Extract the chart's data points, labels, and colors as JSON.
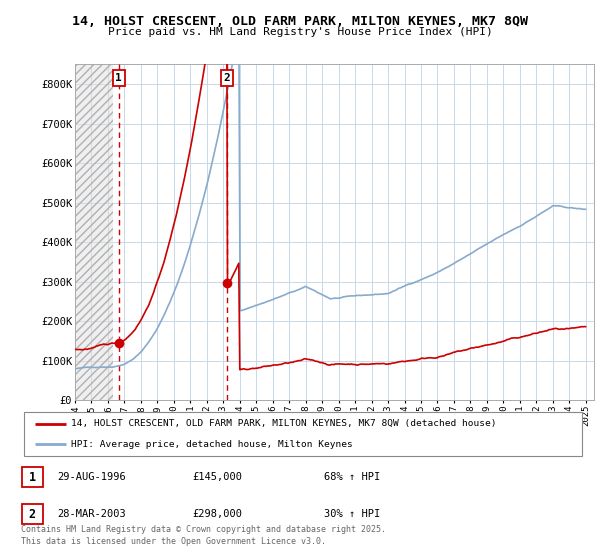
{
  "title": "14, HOLST CRESCENT, OLD FARM PARK, MILTON KEYNES, MK7 8QW",
  "subtitle": "Price paid vs. HM Land Registry's House Price Index (HPI)",
  "sale1_date": 1996.66,
  "sale1_price": 145000,
  "sale2_date": 2003.24,
  "sale2_price": 298000,
  "red_line_color": "#cc0000",
  "blue_line_color": "#88aacc",
  "marker_color": "#cc0000",
  "dashed_color": "#cc0000",
  "ylim": [
    0,
    850000
  ],
  "xlim_left": 1994,
  "xlim_right": 2025.5,
  "yticks": [
    0,
    100000,
    200000,
    300000,
    400000,
    500000,
    600000,
    700000,
    800000
  ],
  "ytick_labels": [
    "£0",
    "£100K",
    "£200K",
    "£300K",
    "£400K",
    "£500K",
    "£600K",
    "£700K",
    "£800K"
  ],
  "legend1": "14, HOLST CRESCENT, OLD FARM PARK, MILTON KEYNES, MK7 8QW (detached house)",
  "legend2": "HPI: Average price, detached house, Milton Keynes",
  "table_row1_num": "1",
  "table_row1_date": "29-AUG-1996",
  "table_row1_price": "£145,000",
  "table_row1_hpi": "68% ↑ HPI",
  "table_row2_num": "2",
  "table_row2_date": "28-MAR-2003",
  "table_row2_price": "£298,000",
  "table_row2_hpi": "30% ↑ HPI",
  "footer": "Contains HM Land Registry data © Crown copyright and database right 2025.\nThis data is licensed under the Open Government Licence v3.0.",
  "bg_color": "#ffffff",
  "grid_color": "#c8d8e8",
  "hatch_end": 1996.3
}
